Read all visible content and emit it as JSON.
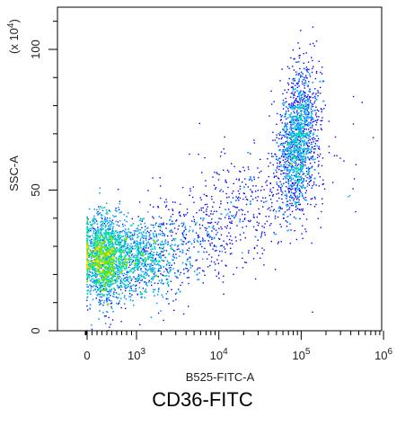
{
  "caption": "CD36-FITC",
  "chart_data": {
    "type": "scatter",
    "subtype": "flow-cytometry-density-dot-plot",
    "xlabel": "B525-FITC-A",
    "ylabel": "SSC-A",
    "y_multiplier_label": "(x 10^4)",
    "x_scale": "biexponential",
    "x_ticks": [
      {
        "value": 0,
        "base": "0",
        "exp": ""
      },
      {
        "value": 1000,
        "base": "10",
        "exp": "3"
      },
      {
        "value": 10000,
        "base": "10",
        "exp": "4"
      },
      {
        "value": 100000,
        "base": "10",
        "exp": "5"
      },
      {
        "value": 1000000,
        "base": "10",
        "exp": "6"
      }
    ],
    "y_ticks": [
      0,
      50,
      100
    ],
    "ylim": [
      0,
      115
    ],
    "grid": false,
    "density_colors": [
      "#0000ff",
      "#00a0ff",
      "#00e0a0",
      "#80e000",
      "#ffe000",
      "#ff5000",
      "#e00000"
    ],
    "populations": [
      {
        "name": "",
        "x_center": 600,
        "y_center": 26,
        "x_spread_decades": 0.35,
        "y_spread": 7,
        "count": 4200
      },
      {
        "name": "",
        "x_center": 90000,
        "y_center": 68,
        "x_spread_decades": 0.12,
        "y_spread": 12,
        "count": 1600
      },
      {
        "name": "",
        "x_center": 8000,
        "y_center": 45,
        "x_spread_decades": 0.7,
        "y_spread": 16,
        "count": 900
      }
    ]
  }
}
